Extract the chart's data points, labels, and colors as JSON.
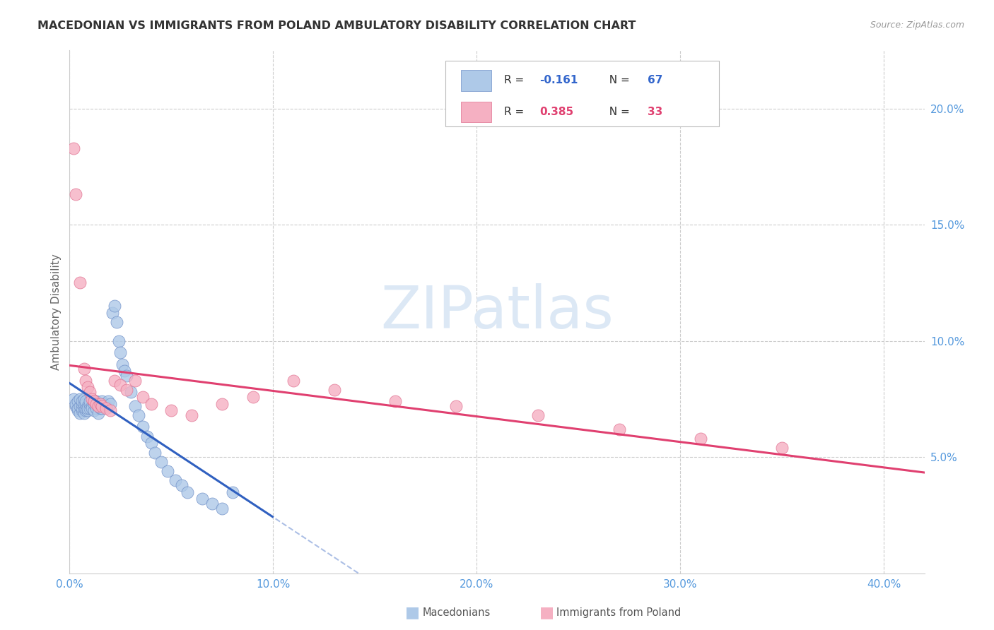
{
  "title": "MACEDONIAN VS IMMIGRANTS FROM POLAND AMBULATORY DISABILITY CORRELATION CHART",
  "source": "Source: ZipAtlas.com",
  "ylabel": "Ambulatory Disability",
  "xlim": [
    0.0,
    0.42
  ],
  "ylim": [
    0.0,
    0.225
  ],
  "xticks": [
    0.0,
    0.1,
    0.2,
    0.3,
    0.4
  ],
  "xticklabels": [
    "0.0%",
    "10.0%",
    "20.0%",
    "30.0%",
    "40.0%"
  ],
  "yticks": [
    0.05,
    0.1,
    0.15,
    0.2
  ],
  "yticklabels": [
    "5.0%",
    "10.0%",
    "15.0%",
    "20.0%"
  ],
  "R_macedonian": -0.161,
  "N_macedonian": 67,
  "R_poland": 0.385,
  "N_poland": 33,
  "macedonian_color": "#aec9e8",
  "poland_color": "#f5b0c2",
  "macedonian_edge": "#7090c8",
  "poland_edge": "#e07090",
  "trend_macedonian_color": "#3060c0",
  "trend_poland_color": "#e04070",
  "watermark_color": "#dce8f5",
  "tick_color": "#5599dd",
  "grid_color": "#cccccc",
  "legend_border": "#bbbbbb",
  "macedonian_x": [
    0.002,
    0.003,
    0.003,
    0.004,
    0.004,
    0.004,
    0.005,
    0.005,
    0.005,
    0.006,
    0.006,
    0.006,
    0.006,
    0.007,
    0.007,
    0.007,
    0.007,
    0.008,
    0.008,
    0.008,
    0.008,
    0.009,
    0.009,
    0.009,
    0.01,
    0.01,
    0.01,
    0.011,
    0.011,
    0.012,
    0.012,
    0.013,
    0.013,
    0.014,
    0.014,
    0.015,
    0.015,
    0.016,
    0.016,
    0.017,
    0.018,
    0.019,
    0.02,
    0.021,
    0.022,
    0.023,
    0.024,
    0.025,
    0.026,
    0.027,
    0.028,
    0.03,
    0.032,
    0.034,
    0.036,
    0.038,
    0.04,
    0.042,
    0.045,
    0.048,
    0.052,
    0.055,
    0.058,
    0.065,
    0.07,
    0.075,
    0.08
  ],
  "macedonian_y": [
    0.075,
    0.072,
    0.073,
    0.07,
    0.071,
    0.074,
    0.069,
    0.072,
    0.075,
    0.07,
    0.071,
    0.073,
    0.074,
    0.069,
    0.071,
    0.073,
    0.075,
    0.07,
    0.071,
    0.073,
    0.074,
    0.072,
    0.07,
    0.071,
    0.071,
    0.073,
    0.074,
    0.072,
    0.071,
    0.07,
    0.073,
    0.071,
    0.074,
    0.072,
    0.069,
    0.071,
    0.073,
    0.071,
    0.074,
    0.073,
    0.072,
    0.074,
    0.073,
    0.112,
    0.115,
    0.108,
    0.1,
    0.095,
    0.09,
    0.087,
    0.085,
    0.078,
    0.072,
    0.068,
    0.063,
    0.059,
    0.056,
    0.052,
    0.048,
    0.044,
    0.04,
    0.038,
    0.035,
    0.032,
    0.03,
    0.028,
    0.035
  ],
  "poland_x": [
    0.002,
    0.003,
    0.005,
    0.007,
    0.008,
    0.009,
    0.01,
    0.011,
    0.012,
    0.013,
    0.014,
    0.015,
    0.016,
    0.018,
    0.02,
    0.022,
    0.025,
    0.028,
    0.032,
    0.036,
    0.04,
    0.05,
    0.06,
    0.075,
    0.09,
    0.11,
    0.13,
    0.16,
    0.19,
    0.23,
    0.27,
    0.31,
    0.35
  ],
  "poland_y": [
    0.183,
    0.163,
    0.125,
    0.088,
    0.083,
    0.08,
    0.078,
    0.075,
    0.074,
    0.073,
    0.072,
    0.073,
    0.072,
    0.071,
    0.07,
    0.083,
    0.081,
    0.079,
    0.083,
    0.076,
    0.073,
    0.07,
    0.068,
    0.073,
    0.076,
    0.083,
    0.079,
    0.074,
    0.072,
    0.068,
    0.062,
    0.058,
    0.054
  ]
}
